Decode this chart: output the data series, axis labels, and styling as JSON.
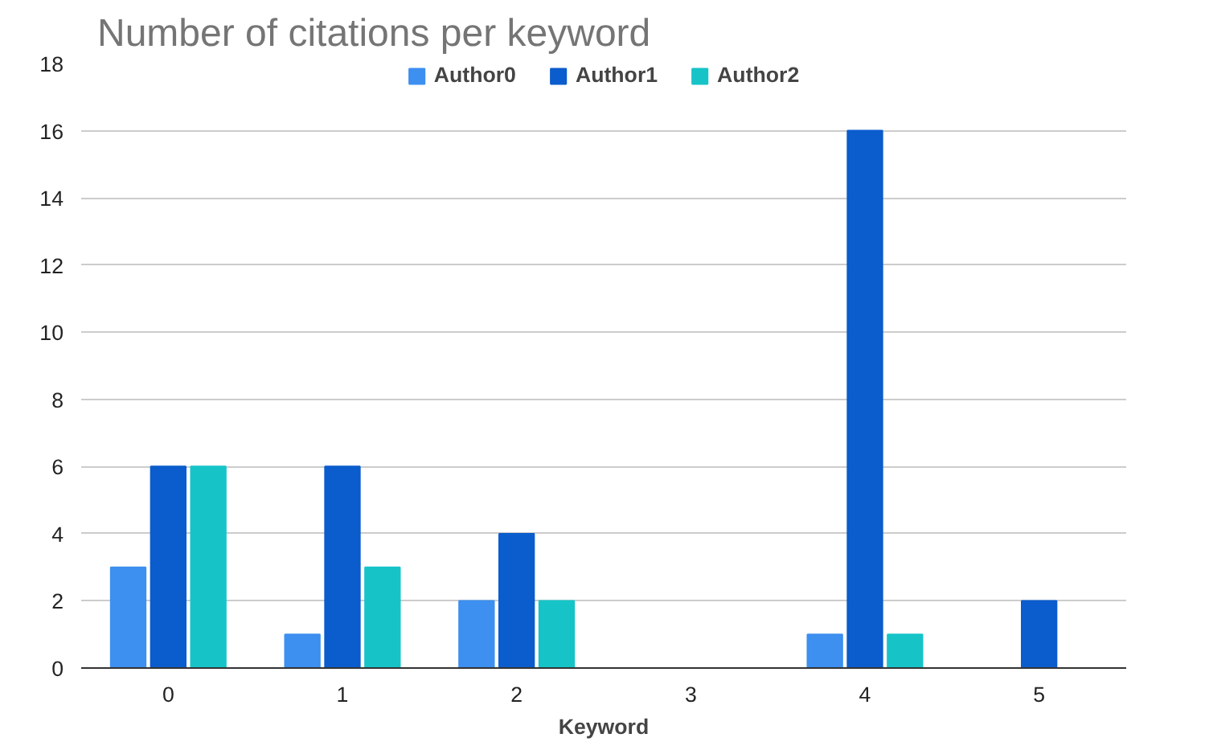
{
  "chart_data": {
    "type": "bar",
    "title": "Number of citations per keyword",
    "xlabel": "Keyword",
    "categories": [
      "0",
      "1",
      "2",
      "3",
      "4",
      "5"
    ],
    "series": [
      {
        "name": "Author0",
        "color": "#3d8ff0",
        "values": [
          3,
          1,
          2,
          0,
          1,
          0
        ]
      },
      {
        "name": "Author1",
        "color": "#0b5ccc",
        "values": [
          6,
          6,
          4,
          0,
          16,
          2
        ]
      },
      {
        "name": "Author2",
        "color": "#16c4c8",
        "values": [
          6,
          3,
          2,
          0,
          1,
          0
        ]
      }
    ],
    "ylim": [
      0,
      18
    ],
    "yticks": [
      0,
      2,
      4,
      6,
      8,
      10,
      12,
      14,
      16,
      18
    ],
    "grid": "y",
    "legend": "top"
  }
}
